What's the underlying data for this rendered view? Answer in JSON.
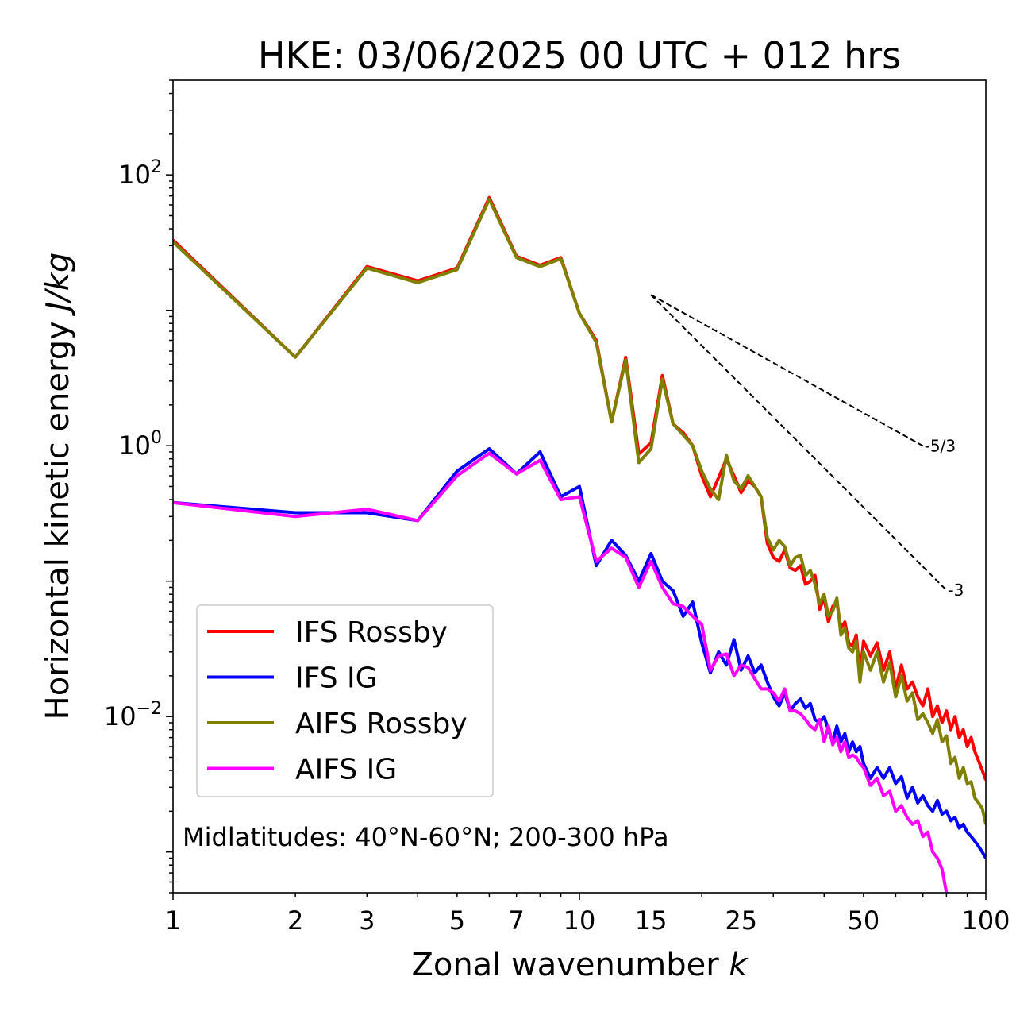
{
  "chart_data": {
    "type": "line",
    "title": "HKE: 03/06/2025 00 UTC + 012 hrs",
    "xlabel": "Zonal wavenumber",
    "xlabel_var": "k",
    "ylabel": "Horizontal kinetic energy",
    "ylabel_unit": "J/kg",
    "xscale": "log",
    "yscale": "log",
    "xlim": [
      1,
      100
    ],
    "ylim": [
      0.0005,
      500
    ],
    "x_ticks": [
      1,
      2,
      3,
      5,
      7,
      10,
      15,
      25,
      50,
      100
    ],
    "x_tick_labels": [
      "1",
      "2",
      "3",
      "5",
      "7",
      "10",
      "15",
      "25",
      "50",
      "100"
    ],
    "y_ticks": [
      {
        "value": 0.01,
        "base": "10",
        "exp": "−2"
      },
      {
        "value": 1,
        "base": "10",
        "exp": "0"
      },
      {
        "value": 100,
        "base": "10",
        "exp": "2"
      }
    ],
    "grid": false,
    "legend_position": "lower-left",
    "annotation": "Midlatitudes: 40°N-60°N; 200-300 hPa",
    "reference_slopes": [
      {
        "label": "-5/3",
        "slope": -1.6667,
        "x": [
          15,
          70
        ],
        "y_start": 13
      },
      {
        "label": "-3",
        "slope": -3,
        "x": [
          15,
          80
        ],
        "y_start": 13
      }
    ],
    "series": [
      {
        "name": "IFS Rossby",
        "color": "#ff0000",
        "x": [
          1,
          2,
          3,
          4,
          5,
          6,
          7,
          8,
          9,
          10,
          11,
          12,
          13,
          14,
          15,
          16,
          17,
          18,
          19,
          20,
          21,
          22,
          23,
          24,
          25,
          26,
          27,
          28,
          29,
          30,
          31,
          32,
          33,
          34,
          35,
          36,
          37,
          38,
          39,
          40,
          41,
          42,
          43,
          44,
          45,
          46,
          47,
          48,
          49,
          50,
          52,
          54,
          56,
          58,
          60,
          62,
          64,
          66,
          68,
          70,
          72,
          74,
          76,
          78,
          80,
          82,
          84,
          86,
          88,
          90,
          92,
          94,
          96,
          98,
          100
        ],
        "y": [
          33,
          4.5,
          21,
          16.5,
          20.5,
          68,
          25,
          21.5,
          24.5,
          9.5,
          6,
          1.5,
          4.5,
          0.87,
          1.05,
          3.3,
          1.45,
          1.25,
          1.0,
          0.6,
          0.42,
          0.58,
          0.8,
          0.6,
          0.45,
          0.55,
          0.5,
          0.42,
          0.19,
          0.15,
          0.14,
          0.17,
          0.125,
          0.12,
          0.13,
          0.095,
          0.1,
          0.11,
          0.062,
          0.075,
          0.05,
          0.065,
          0.07,
          0.045,
          0.05,
          0.035,
          0.033,
          0.04,
          0.02,
          0.036,
          0.028,
          0.035,
          0.022,
          0.03,
          0.016,
          0.024,
          0.016,
          0.018,
          0.014,
          0.012,
          0.016,
          0.01,
          0.012,
          0.009,
          0.011,
          0.008,
          0.01,
          0.007,
          0.008,
          0.006,
          0.007,
          0.0055,
          0.0047,
          0.004,
          0.0034
        ]
      },
      {
        "name": "IFS IG",
        "color": "#0000ff",
        "x": [
          1,
          2,
          3,
          4,
          5,
          6,
          7,
          8,
          9,
          10,
          11,
          12,
          13,
          14,
          15,
          16,
          17,
          18,
          19,
          20,
          21,
          22,
          23,
          24,
          25,
          26,
          27,
          28,
          29,
          30,
          31,
          32,
          33,
          34,
          35,
          36,
          37,
          38,
          39,
          40,
          41,
          42,
          43,
          44,
          45,
          46,
          47,
          48,
          49,
          50,
          52,
          54,
          56,
          58,
          60,
          62,
          64,
          66,
          68,
          70,
          72,
          74,
          76,
          78,
          80,
          82,
          84,
          86,
          88,
          90,
          92,
          94,
          96,
          98,
          100
        ],
        "y": [
          0.38,
          0.32,
          0.32,
          0.28,
          0.65,
          0.95,
          0.62,
          0.9,
          0.42,
          0.5,
          0.13,
          0.2,
          0.155,
          0.1,
          0.16,
          0.1,
          0.085,
          0.055,
          0.07,
          0.035,
          0.021,
          0.03,
          0.024,
          0.037,
          0.022,
          0.028,
          0.021,
          0.024,
          0.018,
          0.014,
          0.012,
          0.015,
          0.011,
          0.0125,
          0.0135,
          0.0115,
          0.0125,
          0.0095,
          0.009,
          0.01,
          0.008,
          0.0065,
          0.0085,
          0.0065,
          0.0075,
          0.0055,
          0.0065,
          0.0055,
          0.006,
          0.0045,
          0.0035,
          0.0042,
          0.0035,
          0.0042,
          0.0032,
          0.0036,
          0.0025,
          0.003,
          0.0023,
          0.0026,
          0.0022,
          0.002,
          0.0024,
          0.0019,
          0.002,
          0.0017,
          0.0018,
          0.0015,
          0.0016,
          0.0014,
          0.0013,
          0.0012,
          0.0011,
          0.001,
          0.0009
        ]
      },
      {
        "name": "AIFS Rossby",
        "color": "#808000",
        "x": [
          1,
          2,
          3,
          4,
          5,
          6,
          7,
          8,
          9,
          10,
          11,
          12,
          13,
          14,
          15,
          16,
          17,
          18,
          19,
          20,
          21,
          22,
          23,
          24,
          25,
          26,
          27,
          28,
          29,
          30,
          31,
          32,
          33,
          34,
          35,
          36,
          37,
          38,
          39,
          40,
          41,
          42,
          43,
          44,
          45,
          46,
          47,
          48,
          49,
          50,
          52,
          54,
          56,
          58,
          60,
          62,
          64,
          66,
          68,
          70,
          72,
          74,
          76,
          78,
          80,
          82,
          84,
          86,
          88,
          90,
          92,
          94,
          96,
          98,
          100
        ],
        "y": [
          32,
          4.5,
          20.5,
          16,
          20,
          66,
          24.5,
          21,
          24,
          9.5,
          5.8,
          1.5,
          4.3,
          0.75,
          0.95,
          3.1,
          1.45,
          1.2,
          1.0,
          0.65,
          0.48,
          0.4,
          0.85,
          0.55,
          0.48,
          0.6,
          0.5,
          0.42,
          0.21,
          0.17,
          0.2,
          0.18,
          0.13,
          0.15,
          0.155,
          0.11,
          0.12,
          0.095,
          0.068,
          0.08,
          0.055,
          0.06,
          0.075,
          0.04,
          0.045,
          0.032,
          0.03,
          0.036,
          0.018,
          0.03,
          0.022,
          0.03,
          0.018,
          0.025,
          0.014,
          0.02,
          0.013,
          0.015,
          0.0095,
          0.0105,
          0.009,
          0.0075,
          0.0095,
          0.0065,
          0.0072,
          0.0045,
          0.005,
          0.0035,
          0.0042,
          0.0032,
          0.0033,
          0.0025,
          0.0023,
          0.0021,
          0.0016
        ]
      },
      {
        "name": "AIFS IG",
        "color": "#ff00ff",
        "x": [
          1,
          2,
          3,
          4,
          5,
          6,
          7,
          8,
          9,
          10,
          11,
          12,
          13,
          14,
          15,
          16,
          17,
          18,
          19,
          20,
          21,
          22,
          23,
          24,
          25,
          26,
          27,
          28,
          29,
          30,
          31,
          32,
          33,
          34,
          35,
          36,
          37,
          38,
          39,
          40,
          41,
          42,
          43,
          44,
          45,
          46,
          47,
          48,
          49,
          50,
          52,
          54,
          56,
          58,
          60,
          62,
          64,
          66,
          68,
          70,
          72,
          74,
          76,
          78,
          80
        ],
        "y": [
          0.38,
          0.3,
          0.34,
          0.28,
          0.6,
          0.88,
          0.62,
          0.78,
          0.4,
          0.42,
          0.14,
          0.175,
          0.15,
          0.09,
          0.14,
          0.09,
          0.068,
          0.065,
          0.055,
          0.048,
          0.022,
          0.028,
          0.029,
          0.02,
          0.024,
          0.023,
          0.019,
          0.016,
          0.016,
          0.015,
          0.013,
          0.016,
          0.011,
          0.011,
          0.0105,
          0.0095,
          0.0085,
          0.008,
          0.0095,
          0.0065,
          0.0085,
          0.0062,
          0.007,
          0.0055,
          0.0065,
          0.005,
          0.0052,
          0.005,
          0.0045,
          0.0042,
          0.0031,
          0.0035,
          0.0026,
          0.0028,
          0.002,
          0.0022,
          0.0018,
          0.0016,
          0.0017,
          0.0013,
          0.0014,
          0.001,
          0.0009,
          0.00075,
          0.0005
        ]
      }
    ]
  }
}
